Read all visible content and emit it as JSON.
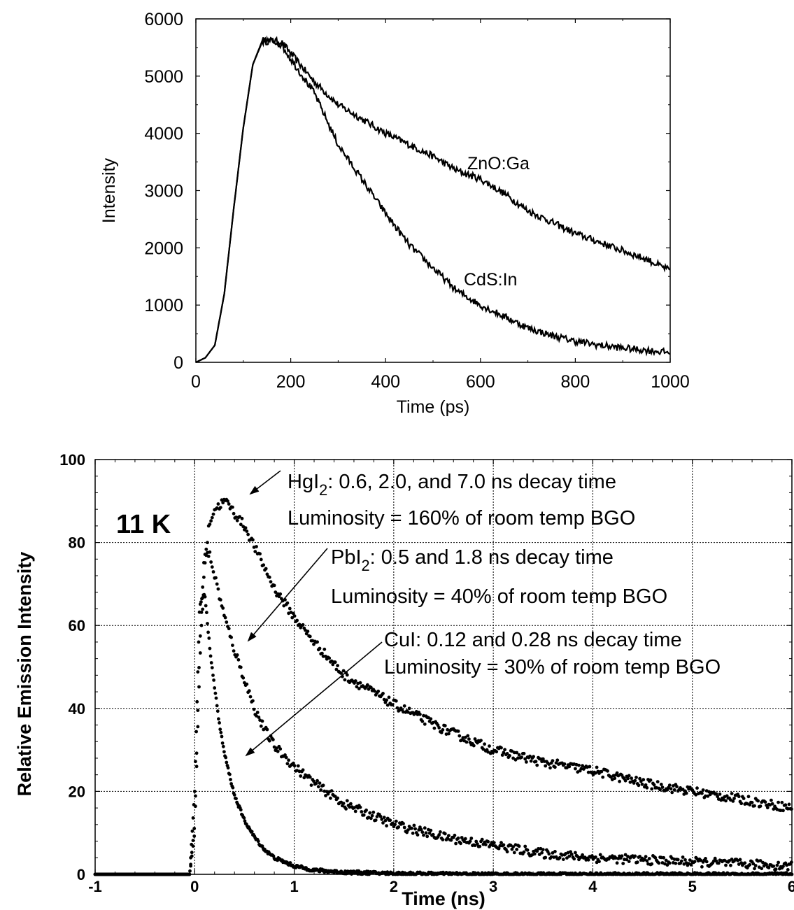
{
  "chart_data": [
    {
      "type": "line",
      "xlabel": "Time (ps)",
      "ylabel": "Intensity",
      "xlim": [
        0,
        1000
      ],
      "ylim": [
        0,
        6000
      ],
      "xticks": [
        "0",
        "200",
        "400",
        "600",
        "800",
        "1000"
      ],
      "yticks": [
        "0",
        "1000",
        "2000",
        "3000",
        "4000",
        "5000",
        "6000"
      ],
      "grid": false,
      "series": [
        {
          "name": "ZnO:Ga",
          "x": [
            0,
            20,
            40,
            60,
            80,
            100,
            120,
            140,
            160,
            180,
            200,
            250,
            300,
            350,
            400,
            450,
            500,
            550,
            600,
            650,
            700,
            750,
            800,
            850,
            900,
            950,
            1000
          ],
          "values": [
            0,
            80,
            300,
            1200,
            2700,
            4100,
            5200,
            5600,
            5620,
            5600,
            5400,
            4900,
            4500,
            4250,
            4000,
            3800,
            3600,
            3350,
            3200,
            2950,
            2650,
            2450,
            2250,
            2100,
            1950,
            1800,
            1600
          ]
        },
        {
          "name": "CdS:In",
          "x": [
            0,
            20,
            40,
            60,
            80,
            100,
            120,
            140,
            160,
            180,
            200,
            250,
            300,
            350,
            400,
            450,
            500,
            550,
            600,
            650,
            700,
            750,
            800,
            850,
            900,
            950,
            1000
          ],
          "values": [
            0,
            80,
            300,
            1200,
            2700,
            4100,
            5200,
            5620,
            5620,
            5550,
            5300,
            4700,
            3800,
            3200,
            2600,
            2050,
            1650,
            1250,
            1000,
            800,
            600,
            470,
            370,
            300,
            250,
            210,
            170
          ]
        }
      ]
    },
    {
      "type": "scatter",
      "xlabel": "Time (ns)",
      "ylabel": "Relative Emission Intensity",
      "xlim": [
        -1,
        6
      ],
      "ylim": [
        0,
        100
      ],
      "xticks": [
        "-1",
        "0",
        "1",
        "2",
        "3",
        "4",
        "5",
        "6"
      ],
      "yticks": [
        "0",
        "20",
        "40",
        "60",
        "80",
        "100"
      ],
      "grid": true,
      "temperature_label": "11 K",
      "series": [
        {
          "name": "HgI2",
          "x": [
            -1,
            -0.1,
            -0.05,
            0,
            0.05,
            0.1,
            0.15,
            0.2,
            0.3,
            0.35,
            0.4,
            0.5,
            0.6,
            0.7,
            0.8,
            1.0,
            1.2,
            1.5,
            2.0,
            2.5,
            3.0,
            3.5,
            4.0,
            4.5,
            5.0,
            5.5,
            6.0
          ],
          "values": [
            0,
            0,
            0,
            10,
            50,
            75,
            85,
            88,
            90,
            89,
            87,
            84,
            79,
            74,
            69,
            62,
            56,
            48,
            41,
            35,
            30,
            27,
            25,
            22,
            20,
            18,
            16
          ]
        },
        {
          "name": "PbI2",
          "x": [
            -1,
            -0.1,
            -0.05,
            0,
            0.05,
            0.1,
            0.15,
            0.2,
            0.3,
            0.4,
            0.5,
            0.6,
            0.7,
            0.8,
            1.0,
            1.2,
            1.5,
            2.0,
            2.5,
            3.0,
            3.5,
            4.0,
            4.5,
            5.0,
            5.5,
            6.0
          ],
          "values": [
            0,
            0,
            0,
            12,
            55,
            78,
            77,
            72,
            62,
            54,
            47,
            40,
            35,
            31,
            26,
            22,
            17,
            12,
            9,
            7,
            5,
            4,
            3.5,
            3,
            2.5,
            2
          ]
        },
        {
          "name": "CuI",
          "x": [
            -1,
            -0.1,
            -0.05,
            0,
            0.05,
            0.1,
            0.15,
            0.2,
            0.25,
            0.3,
            0.35,
            0.4,
            0.5,
            0.6,
            0.7,
            0.8,
            1.0,
            1.2,
            1.5,
            2.0,
            3.0,
            4.0,
            5.0,
            6.0
          ],
          "values": [
            0,
            0,
            0,
            20,
            65,
            68,
            55,
            45,
            36,
            29,
            24,
            19,
            13,
            9,
            6,
            4,
            2,
            1,
            0.5,
            0.2,
            0,
            0,
            0,
            0
          ]
        }
      ],
      "annotations": [
        {
          "id": "hgi2",
          "lines": [
            "HgI2: 0.6, 2.0, and 7.0 ns decay time",
            "Luminosity = 160% of room temp BGO"
          ]
        },
        {
          "id": "pbi2",
          "lines": [
            "PbI2: 0.5 and 1.8 ns decay time",
            "Luminosity = 40% of room temp BGO"
          ]
        },
        {
          "id": "cui",
          "lines": [
            "CuI: 0.12 and 0.28 ns decay time",
            "Luminosity = 30% of room temp BGO"
          ]
        }
      ]
    }
  ]
}
